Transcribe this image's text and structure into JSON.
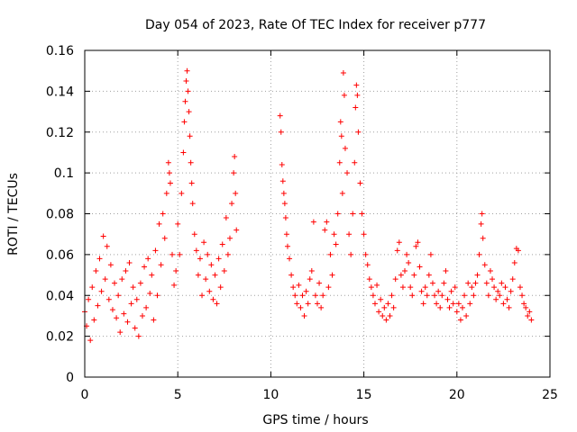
{
  "chart_data": {
    "type": "scatter",
    "title": "Day 054 of 2023, Rate Of TEC Index for receiver p777",
    "xlabel": "GPS time / hours",
    "ylabel": "ROTI / TECUs",
    "xlim": [
      0,
      25
    ],
    "ylim": [
      0,
      0.16
    ],
    "xticks": [
      0,
      5,
      10,
      15,
      20,
      25
    ],
    "xtick_labels": [
      "0",
      "5",
      "10",
      "15",
      "20",
      "25"
    ],
    "yticks": [
      0,
      0.02,
      0.04,
      0.06,
      0.08,
      0.1,
      0.12,
      0.14,
      0.16
    ],
    "ytick_labels": [
      "0",
      "0.02",
      "0.04",
      "0.06",
      "0.08",
      "0.1",
      "0.12",
      "0.14",
      "0.16"
    ],
    "grid": true,
    "marker": "+",
    "color": "#ff0000",
    "series": [
      {
        "name": "ROTI",
        "points": [
          [
            0.0,
            0.032
          ],
          [
            0.1,
            0.025
          ],
          [
            0.2,
            0.038
          ],
          [
            0.3,
            0.018
          ],
          [
            0.4,
            0.044
          ],
          [
            0.5,
            0.028
          ],
          [
            0.6,
            0.052
          ],
          [
            0.7,
            0.035
          ],
          [
            0.8,
            0.058
          ],
          [
            0.9,
            0.042
          ],
          [
            1.0,
            0.069
          ],
          [
            1.1,
            0.048
          ],
          [
            1.2,
            0.064
          ],
          [
            1.3,
            0.038
          ],
          [
            1.4,
            0.055
          ],
          [
            1.5,
            0.033
          ],
          [
            1.6,
            0.046
          ],
          [
            1.7,
            0.029
          ],
          [
            1.8,
            0.04
          ],
          [
            1.9,
            0.022
          ],
          [
            2.0,
            0.048
          ],
          [
            2.1,
            0.031
          ],
          [
            2.2,
            0.052
          ],
          [
            2.3,
            0.027
          ],
          [
            2.4,
            0.056
          ],
          [
            2.5,
            0.036
          ],
          [
            2.6,
            0.044
          ],
          [
            2.7,
            0.024
          ],
          [
            2.8,
            0.038
          ],
          [
            2.9,
            0.02
          ],
          [
            3.0,
            0.046
          ],
          [
            3.1,
            0.03
          ],
          [
            3.2,
            0.054
          ],
          [
            3.3,
            0.034
          ],
          [
            3.4,
            0.058
          ],
          [
            3.5,
            0.041
          ],
          [
            3.6,
            0.05
          ],
          [
            3.7,
            0.028
          ],
          [
            3.8,
            0.062
          ],
          [
            3.9,
            0.04
          ],
          [
            4.0,
            0.075
          ],
          [
            4.1,
            0.055
          ],
          [
            4.2,
            0.08
          ],
          [
            4.3,
            0.068
          ],
          [
            4.4,
            0.09
          ],
          [
            4.5,
            0.105
          ],
          [
            4.55,
            0.1
          ],
          [
            4.6,
            0.095
          ],
          [
            4.7,
            0.06
          ],
          [
            4.8,
            0.045
          ],
          [
            4.9,
            0.052
          ],
          [
            5.0,
            0.075
          ],
          [
            5.1,
            0.06
          ],
          [
            5.2,
            0.09
          ],
          [
            5.3,
            0.11
          ],
          [
            5.35,
            0.125
          ],
          [
            5.4,
            0.135
          ],
          [
            5.45,
            0.145
          ],
          [
            5.5,
            0.15
          ],
          [
            5.55,
            0.14
          ],
          [
            5.6,
            0.13
          ],
          [
            5.65,
            0.118
          ],
          [
            5.7,
            0.105
          ],
          [
            5.75,
            0.095
          ],
          [
            5.8,
            0.085
          ],
          [
            5.9,
            0.07
          ],
          [
            6.0,
            0.062
          ],
          [
            6.1,
            0.05
          ],
          [
            6.2,
            0.058
          ],
          [
            6.3,
            0.04
          ],
          [
            6.4,
            0.066
          ],
          [
            6.5,
            0.048
          ],
          [
            6.6,
            0.06
          ],
          [
            6.7,
            0.042
          ],
          [
            6.8,
            0.055
          ],
          [
            6.9,
            0.038
          ],
          [
            7.0,
            0.05
          ],
          [
            7.1,
            0.036
          ],
          [
            7.2,
            0.058
          ],
          [
            7.3,
            0.044
          ],
          [
            7.4,
            0.065
          ],
          [
            7.5,
            0.052
          ],
          [
            7.6,
            0.078
          ],
          [
            7.7,
            0.06
          ],
          [
            7.8,
            0.068
          ],
          [
            7.9,
            0.085
          ],
          [
            8.0,
            0.1
          ],
          [
            8.05,
            0.108
          ],
          [
            8.1,
            0.09
          ],
          [
            8.15,
            0.072
          ],
          [
            10.5,
            0.128
          ],
          [
            10.55,
            0.12
          ],
          [
            10.6,
            0.104
          ],
          [
            10.65,
            0.096
          ],
          [
            10.7,
            0.09
          ],
          [
            10.75,
            0.085
          ],
          [
            10.8,
            0.078
          ],
          [
            10.85,
            0.07
          ],
          [
            10.9,
            0.064
          ],
          [
            11.0,
            0.058
          ],
          [
            11.1,
            0.05
          ],
          [
            11.2,
            0.044
          ],
          [
            11.3,
            0.04
          ],
          [
            11.4,
            0.036
          ],
          [
            11.5,
            0.045
          ],
          [
            11.6,
            0.034
          ],
          [
            11.7,
            0.04
          ],
          [
            11.8,
            0.03
          ],
          [
            11.9,
            0.042
          ],
          [
            12.0,
            0.036
          ],
          [
            12.1,
            0.048
          ],
          [
            12.2,
            0.052
          ],
          [
            12.3,
            0.076
          ],
          [
            12.4,
            0.04
          ],
          [
            12.5,
            0.036
          ],
          [
            12.6,
            0.046
          ],
          [
            12.7,
            0.034
          ],
          [
            12.8,
            0.04
          ],
          [
            12.9,
            0.072
          ],
          [
            13.0,
            0.076
          ],
          [
            13.1,
            0.044
          ],
          [
            13.2,
            0.06
          ],
          [
            13.3,
            0.05
          ],
          [
            13.4,
            0.07
          ],
          [
            13.5,
            0.065
          ],
          [
            13.6,
            0.08
          ],
          [
            13.7,
            0.105
          ],
          [
            13.75,
            0.125
          ],
          [
            13.8,
            0.118
          ],
          [
            13.85,
            0.09
          ],
          [
            13.9,
            0.149
          ],
          [
            13.95,
            0.138
          ],
          [
            14.0,
            0.112
          ],
          [
            14.1,
            0.1
          ],
          [
            14.2,
            0.07
          ],
          [
            14.3,
            0.06
          ],
          [
            14.4,
            0.08
          ],
          [
            14.5,
            0.105
          ],
          [
            14.55,
            0.132
          ],
          [
            14.6,
            0.143
          ],
          [
            14.65,
            0.138
          ],
          [
            14.7,
            0.12
          ],
          [
            14.8,
            0.095
          ],
          [
            14.9,
            0.08
          ],
          [
            15.0,
            0.07
          ],
          [
            15.1,
            0.06
          ],
          [
            15.2,
            0.055
          ],
          [
            15.3,
            0.048
          ],
          [
            15.4,
            0.044
          ],
          [
            15.5,
            0.04
          ],
          [
            15.6,
            0.036
          ],
          [
            15.7,
            0.045
          ],
          [
            15.8,
            0.032
          ],
          [
            15.9,
            0.038
          ],
          [
            16.0,
            0.03
          ],
          [
            16.1,
            0.034
          ],
          [
            16.2,
            0.028
          ],
          [
            16.3,
            0.036
          ],
          [
            16.4,
            0.03
          ],
          [
            16.5,
            0.04
          ],
          [
            16.6,
            0.034
          ],
          [
            16.7,
            0.048
          ],
          [
            16.8,
            0.062
          ],
          [
            16.9,
            0.066
          ],
          [
            17.0,
            0.05
          ],
          [
            17.1,
            0.044
          ],
          [
            17.2,
            0.052
          ],
          [
            17.3,
            0.06
          ],
          [
            17.4,
            0.056
          ],
          [
            17.5,
            0.044
          ],
          [
            17.6,
            0.04
          ],
          [
            17.7,
            0.05
          ],
          [
            17.8,
            0.064
          ],
          [
            17.9,
            0.066
          ],
          [
            18.0,
            0.054
          ],
          [
            18.1,
            0.042
          ],
          [
            18.2,
            0.036
          ],
          [
            18.3,
            0.044
          ],
          [
            18.4,
            0.04
          ],
          [
            18.5,
            0.05
          ],
          [
            18.6,
            0.06
          ],
          [
            18.7,
            0.046
          ],
          [
            18.8,
            0.04
          ],
          [
            18.9,
            0.036
          ],
          [
            19.0,
            0.042
          ],
          [
            19.1,
            0.034
          ],
          [
            19.2,
            0.04
          ],
          [
            19.3,
            0.046
          ],
          [
            19.4,
            0.052
          ],
          [
            19.5,
            0.038
          ],
          [
            19.6,
            0.034
          ],
          [
            19.7,
            0.042
          ],
          [
            19.8,
            0.036
          ],
          [
            19.9,
            0.044
          ],
          [
            20.0,
            0.032
          ],
          [
            20.1,
            0.036
          ],
          [
            20.2,
            0.028
          ],
          [
            20.3,
            0.034
          ],
          [
            20.4,
            0.04
          ],
          [
            20.5,
            0.03
          ],
          [
            20.6,
            0.046
          ],
          [
            20.7,
            0.036
          ],
          [
            20.8,
            0.044
          ],
          [
            20.9,
            0.04
          ],
          [
            21.0,
            0.046
          ],
          [
            21.1,
            0.05
          ],
          [
            21.2,
            0.06
          ],
          [
            21.3,
            0.075
          ],
          [
            21.35,
            0.08
          ],
          [
            21.4,
            0.068
          ],
          [
            21.5,
            0.055
          ],
          [
            21.6,
            0.046
          ],
          [
            21.7,
            0.04
          ],
          [
            21.8,
            0.052
          ],
          [
            21.9,
            0.048
          ],
          [
            22.0,
            0.044
          ],
          [
            22.1,
            0.038
          ],
          [
            22.2,
            0.042
          ],
          [
            22.3,
            0.04
          ],
          [
            22.4,
            0.046
          ],
          [
            22.5,
            0.036
          ],
          [
            22.6,
            0.044
          ],
          [
            22.7,
            0.038
          ],
          [
            22.8,
            0.034
          ],
          [
            22.9,
            0.042
          ],
          [
            23.0,
            0.048
          ],
          [
            23.1,
            0.056
          ],
          [
            23.2,
            0.063
          ],
          [
            23.3,
            0.062
          ],
          [
            23.4,
            0.044
          ],
          [
            23.5,
            0.04
          ],
          [
            23.6,
            0.036
          ],
          [
            23.7,
            0.034
          ],
          [
            23.8,
            0.03
          ],
          [
            23.9,
            0.032
          ],
          [
            24.0,
            0.028
          ]
        ]
      }
    ]
  }
}
